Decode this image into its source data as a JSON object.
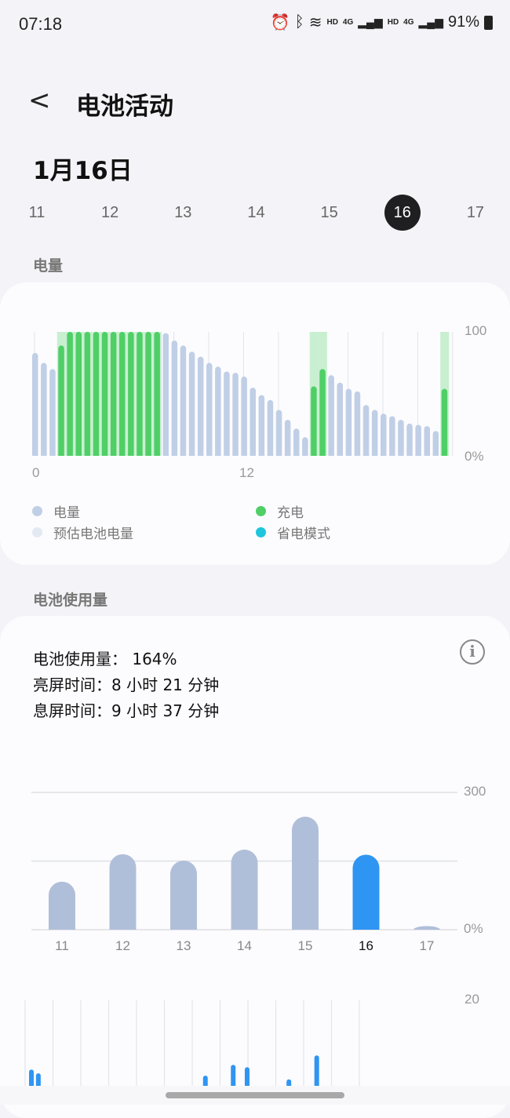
{
  "status": {
    "time": "07:18",
    "icons": [
      "alarm-icon",
      "bluetooth-icon",
      "wifi-icon",
      "signal-icon",
      "signal-icon",
      "battery-icon"
    ],
    "hd1": "HD",
    "net1": "4G",
    "hd2": "HD",
    "net2": "4G",
    "battery": "91%"
  },
  "header": {
    "title": "电池活动",
    "date": "1月16日"
  },
  "days": [
    {
      "label": "11"
    },
    {
      "label": "12"
    },
    {
      "label": "13"
    },
    {
      "label": "14"
    },
    {
      "label": "15"
    },
    {
      "label": "16",
      "selected": true
    },
    {
      "label": "17"
    }
  ],
  "level": {
    "section": "电量",
    "y_top": "100",
    "y_bottom": "0%",
    "x_labels": [
      "0",
      "12"
    ],
    "legend": [
      {
        "label": "电量",
        "color": "#c0cfe6"
      },
      {
        "label": "充电",
        "color": "#4fcf66"
      },
      {
        "label": "预估电池电量",
        "color": "#e3e9f3"
      },
      {
        "label": "省电模式",
        "color": "#1ec6dc"
      }
    ]
  },
  "usage": {
    "section": "电池使用量",
    "usage_line": "电池使用量：  164%",
    "screen_on": "亮屏时间：8 小时 21 分钟",
    "screen_off": "息屏时间：9 小时 37 分钟",
    "y_top": "300",
    "y_bottom": "0%",
    "y2_top": "20"
  },
  "chart_data": [
    {
      "type": "bar",
      "ylim": [
        0,
        100
      ],
      "interval": "30 min",
      "x_ticks": [
        "0",
        "12"
      ],
      "values": [
        83,
        75,
        70,
        89,
        100,
        100,
        100,
        100,
        100,
        100,
        100,
        100,
        100,
        100,
        100,
        99,
        93,
        89,
        84,
        80,
        75,
        72,
        68,
        67,
        64,
        55,
        49,
        45,
        37,
        29,
        22,
        15,
        56,
        70,
        65,
        59,
        54,
        52,
        41,
        37,
        34,
        32,
        29,
        26,
        25,
        24,
        20,
        54
      ],
      "charging": [
        4,
        5,
        6,
        7,
        8,
        9,
        10,
        11,
        12,
        13,
        14,
        15,
        33,
        34,
        48
      ],
      "colors": {
        "level": "#c0cfe6",
        "charging": "#4fcf66",
        "charging_band": "#c8efd0"
      }
    },
    {
      "type": "bar",
      "ylim": [
        0,
        300
      ],
      "categories": [
        "11",
        "12",
        "13",
        "14",
        "15",
        "16",
        "17"
      ],
      "values": [
        105,
        165,
        151,
        175,
        247,
        164,
        8
      ],
      "highlight": "16",
      "colors": {
        "normal": "#b0bfd9",
        "selected": "#2f95f2"
      }
    },
    {
      "type": "bar",
      "ylim": [
        0,
        20
      ],
      "values": [
        5.3,
        4.5,
        0,
        0,
        0,
        0,
        0,
        0,
        0,
        0,
        0,
        0,
        0,
        0,
        0,
        0,
        0,
        0,
        0,
        0,
        0,
        0,
        0,
        0,
        0,
        4,
        0,
        0,
        0,
        6.3,
        0,
        5.8,
        0,
        0,
        0,
        0,
        0,
        3.2,
        0,
        0,
        0,
        8.3
      ],
      "color": "#2f95f2"
    }
  ]
}
